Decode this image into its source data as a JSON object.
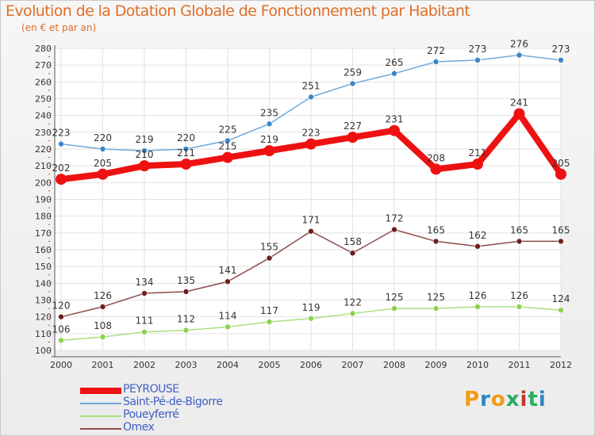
{
  "title": "Evolution de la Dotation Globale de Fonctionnement par Habitant",
  "subtitle": "(en € et par an)",
  "logo": {
    "letters": [
      "P",
      "r",
      "o",
      "x",
      "i",
      "t",
      "i"
    ],
    "colors": [
      "#f39c12",
      "#2e86c1",
      "#f39c12",
      "#27ae60",
      "#c0392b",
      "#27ae60",
      "#2e86c1"
    ]
  },
  "chart_data": {
    "type": "line",
    "title": "Evolution de la Dotation Globale de Fonctionnement par Habitant",
    "subtitle": "(en € et par an)",
    "xlabel": "",
    "ylabel": "",
    "x": [
      "2000",
      "2001",
      "2002",
      "2003",
      "2004",
      "2005",
      "2006",
      "2007",
      "2008",
      "2009",
      "2010",
      "2011",
      "2012"
    ],
    "ylim": [
      100,
      280
    ],
    "yticks": [
      100,
      110,
      120,
      130,
      140,
      150,
      160,
      170,
      180,
      190,
      200,
      210,
      220,
      230,
      240,
      250,
      260,
      270,
      280
    ],
    "grid": true,
    "legend_position": "bottom-left",
    "series": [
      {
        "name": "PEYROUSE",
        "color": "#ee1111",
        "values": [
          202,
          205,
          210,
          211,
          215,
          219,
          223,
          227,
          231,
          208,
          211,
          241,
          205
        ]
      },
      {
        "name": "Saint-Pé-de-Bigorre",
        "color": "#6fa8dc",
        "marker": "#3d85c6",
        "values": [
          223,
          220,
          219,
          220,
          225,
          235,
          251,
          259,
          265,
          272,
          273,
          276,
          273
        ]
      },
      {
        "name": "Poueyferré",
        "color": "#a9df7f",
        "marker": "#8fd14f",
        "values": [
          106,
          108,
          111,
          112,
          114,
          117,
          119,
          122,
          125,
          125,
          126,
          126,
          124
        ]
      },
      {
        "name": "Omex",
        "color": "#8e4b4b",
        "marker": "#6d1f1f",
        "values": [
          120,
          126,
          134,
          135,
          141,
          155,
          171,
          158,
          172,
          165,
          162,
          165,
          165
        ]
      }
    ]
  }
}
